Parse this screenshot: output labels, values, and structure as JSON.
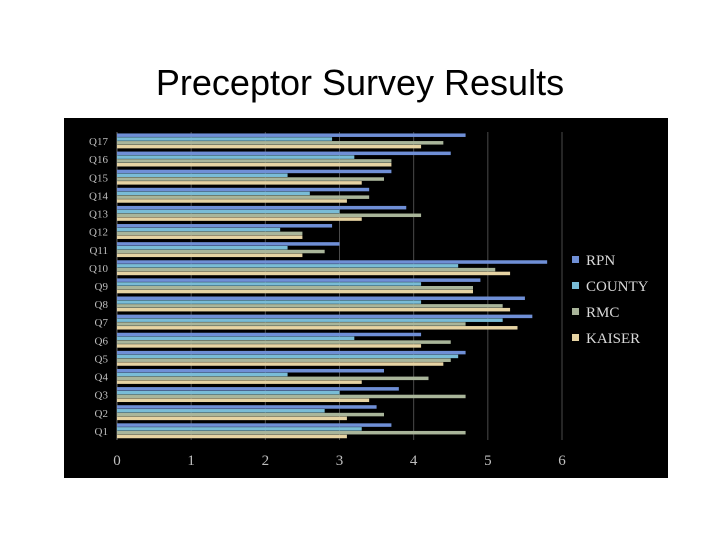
{
  "slide": {
    "title": "Preceptor Survey Results"
  },
  "chart_data": {
    "type": "bar",
    "orientation": "horizontal",
    "title": "",
    "xlabel": "",
    "ylabel": "",
    "xlim": [
      0,
      6
    ],
    "xticks": [
      "0",
      "1",
      "2",
      "3",
      "4",
      "5",
      "6"
    ],
    "grid": "vertical",
    "legend_position": "right",
    "categories": [
      "Q1",
      "Q2",
      "Q3",
      "Q4",
      "Q5",
      "Q6",
      "Q7",
      "Q8",
      "Q9",
      "Q10",
      "Q11",
      "Q12",
      "Q13",
      "Q14",
      "Q15",
      "Q16",
      "Q17"
    ],
    "series": [
      {
        "name": "RPN",
        "color": "#6f8fd6",
        "values": [
          3.7,
          3.5,
          3.8,
          3.6,
          4.7,
          4.1,
          5.6,
          5.5,
          4.9,
          5.8,
          3.0,
          2.9,
          3.9,
          3.4,
          3.7,
          4.5,
          4.7
        ]
      },
      {
        "name": "COUNTY",
        "color": "#79bcd6",
        "values": [
          3.3,
          2.8,
          3.0,
          2.3,
          4.6,
          3.2,
          5.2,
          4.1,
          4.1,
          4.6,
          2.3,
          2.2,
          3.0,
          2.6,
          2.3,
          3.2,
          2.9
        ]
      },
      {
        "name": "RMC",
        "color": "#a9b59a",
        "values": [
          4.7,
          3.6,
          4.7,
          4.2,
          4.5,
          4.5,
          4.7,
          5.2,
          4.8,
          5.1,
          2.8,
          2.5,
          4.1,
          3.4,
          3.6,
          3.7,
          4.4
        ]
      },
      {
        "name": "KAISER",
        "color": "#e6d3a3",
        "values": [
          3.1,
          3.1,
          3.4,
          3.3,
          4.4,
          4.1,
          5.4,
          5.3,
          4.8,
          5.3,
          2.5,
          2.5,
          3.3,
          3.1,
          3.3,
          3.7,
          4.1
        ]
      }
    ]
  }
}
